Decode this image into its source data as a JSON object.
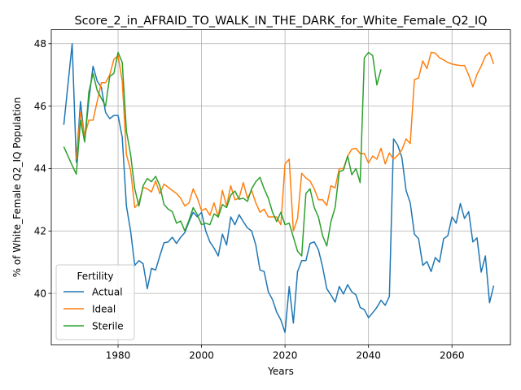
{
  "chart_data": {
    "type": "line",
    "title": "Score_2_in_AFRAID_TO_WALK_IN_THE_DARK_for_White_Female_Q2_IQ",
    "xlabel": "Years",
    "ylabel": "% of White_Female Q2_IQ Population",
    "xlim": [
      1964,
      2074
    ],
    "ylim": [
      38.35,
      48.45
    ],
    "xticks": [
      1980,
      2000,
      2020,
      2040,
      2060
    ],
    "yticks": [
      40,
      42,
      44,
      46,
      48
    ],
    "grid": true,
    "legend": {
      "title": "Fertility",
      "placement": "lower-left"
    },
    "series": [
      {
        "name": "Actual",
        "color": "#1f77b4",
        "points": [
          [
            1967,
            45.4
          ],
          [
            1968,
            46.7
          ],
          [
            1969,
            48.0
          ],
          [
            1970,
            44.2
          ],
          [
            1971,
            46.15
          ],
          [
            1972,
            44.9
          ],
          [
            1973,
            46.2
          ],
          [
            1974,
            47.28
          ],
          [
            1975,
            46.8
          ],
          [
            1976,
            46.6
          ],
          [
            1977,
            45.8
          ],
          [
            1978,
            45.6
          ],
          [
            1979,
            45.7
          ],
          [
            1980,
            45.7
          ],
          [
            1981,
            45.0
          ],
          [
            1982,
            42.8
          ],
          [
            1983,
            42.0
          ],
          [
            1984,
            40.9
          ],
          [
            1985,
            41.05
          ],
          [
            1986,
            40.95
          ],
          [
            1987,
            40.15
          ],
          [
            1988,
            40.8
          ],
          [
            1989,
            40.75
          ],
          [
            1990,
            41.2
          ],
          [
            1991,
            41.62
          ],
          [
            1992,
            41.65
          ],
          [
            1993,
            41.8
          ],
          [
            1994,
            41.6
          ],
          [
            1995,
            41.8
          ],
          [
            1996,
            41.95
          ],
          [
            1997,
            42.3
          ],
          [
            1998,
            42.6
          ],
          [
            1999,
            42.45
          ],
          [
            2000,
            42.6
          ],
          [
            2001,
            42.0
          ],
          [
            2002,
            41.65
          ],
          [
            2003,
            41.45
          ],
          [
            2004,
            41.2
          ],
          [
            2005,
            41.9
          ],
          [
            2006,
            41.55
          ],
          [
            2007,
            42.45
          ],
          [
            2008,
            42.2
          ],
          [
            2009,
            42.52
          ],
          [
            2010,
            42.3
          ],
          [
            2011,
            42.1
          ],
          [
            2012,
            42.0
          ],
          [
            2013,
            41.55
          ],
          [
            2014,
            40.75
          ],
          [
            2015,
            40.7
          ],
          [
            2016,
            40.05
          ],
          [
            2017,
            39.8
          ],
          [
            2018,
            39.4
          ],
          [
            2019,
            39.15
          ],
          [
            2020,
            38.75
          ],
          [
            2021,
            40.22
          ],
          [
            2022,
            39.05
          ],
          [
            2023,
            40.7
          ],
          [
            2024,
            41.05
          ],
          [
            2025,
            41.05
          ],
          [
            2026,
            41.6
          ],
          [
            2027,
            41.65
          ],
          [
            2028,
            41.4
          ],
          [
            2029,
            40.85
          ],
          [
            2030,
            40.15
          ],
          [
            2031,
            39.95
          ],
          [
            2032,
            39.72
          ],
          [
            2033,
            40.22
          ],
          [
            2034,
            39.98
          ],
          [
            2035,
            40.28
          ],
          [
            2036,
            40.05
          ],
          [
            2037,
            39.95
          ],
          [
            2038,
            39.55
          ],
          [
            2039,
            39.48
          ],
          [
            2040,
            39.22
          ],
          [
            2041,
            39.38
          ],
          [
            2042,
            39.55
          ],
          [
            2043,
            39.78
          ],
          [
            2044,
            39.62
          ],
          [
            2045,
            39.9
          ],
          [
            2046,
            44.95
          ],
          [
            2047,
            44.75
          ],
          [
            2048,
            44.35
          ],
          [
            2049,
            43.3
          ],
          [
            2050,
            42.9
          ],
          [
            2051,
            41.9
          ],
          [
            2052,
            41.75
          ],
          [
            2053,
            40.9
          ],
          [
            2054,
            41.02
          ],
          [
            2055,
            40.7
          ],
          [
            2056,
            41.15
          ],
          [
            2057,
            41.0
          ],
          [
            2058,
            41.75
          ],
          [
            2059,
            41.85
          ],
          [
            2060,
            42.45
          ],
          [
            2061,
            42.25
          ],
          [
            2062,
            42.88
          ],
          [
            2063,
            42.4
          ],
          [
            2064,
            42.62
          ],
          [
            2065,
            41.65
          ],
          [
            2066,
            41.78
          ],
          [
            2067,
            40.68
          ],
          [
            2068,
            41.2
          ],
          [
            2069,
            39.7
          ],
          [
            2070,
            40.25
          ]
        ]
      },
      {
        "name": "Ideal",
        "color": "#ff7f0e",
        "points": [
          [
            1970,
            44.3
          ],
          [
            1971,
            45.8
          ],
          [
            1972,
            45.05
          ],
          [
            1973,
            45.55
          ],
          [
            1974,
            45.55
          ],
          [
            1975,
            46.15
          ],
          [
            1976,
            46.75
          ],
          [
            1977,
            46.75
          ],
          [
            1978,
            47.0
          ],
          [
            1979,
            47.5
          ],
          [
            1980,
            47.62
          ],
          [
            1981,
            46.8
          ],
          [
            1982,
            44.45
          ],
          [
            1983,
            43.95
          ],
          [
            1984,
            42.75
          ],
          [
            1985,
            42.9
          ],
          [
            1986,
            43.4
          ],
          [
            1987,
            43.35
          ],
          [
            1988,
            43.25
          ],
          [
            1989,
            43.6
          ],
          [
            1990,
            43.2
          ],
          [
            1991,
            43.5
          ],
          [
            1992,
            43.4
          ],
          [
            1993,
            43.3
          ],
          [
            1994,
            43.2
          ],
          [
            1995,
            43.05
          ],
          [
            1996,
            42.8
          ],
          [
            1997,
            42.9
          ],
          [
            1998,
            43.35
          ],
          [
            1999,
            43.05
          ],
          [
            2000,
            42.65
          ],
          [
            2001,
            42.72
          ],
          [
            2002,
            42.5
          ],
          [
            2003,
            42.9
          ],
          [
            2004,
            42.45
          ],
          [
            2005,
            43.3
          ],
          [
            2006,
            42.8
          ],
          [
            2007,
            43.45
          ],
          [
            2008,
            43.0
          ],
          [
            2009,
            43.05
          ],
          [
            2010,
            43.55
          ],
          [
            2011,
            43.05
          ],
          [
            2012,
            43.3
          ],
          [
            2013,
            42.9
          ],
          [
            2014,
            42.6
          ],
          [
            2015,
            42.7
          ],
          [
            2016,
            42.45
          ],
          [
            2017,
            42.45
          ],
          [
            2018,
            42.45
          ],
          [
            2019,
            42.2
          ],
          [
            2020,
            44.15
          ],
          [
            2021,
            44.3
          ],
          [
            2022,
            42.0
          ],
          [
            2023,
            42.4
          ],
          [
            2024,
            43.85
          ],
          [
            2025,
            43.7
          ],
          [
            2026,
            43.6
          ],
          [
            2027,
            43.35
          ],
          [
            2028,
            43.0
          ],
          [
            2029,
            43.0
          ],
          [
            2030,
            42.82
          ],
          [
            2031,
            43.45
          ],
          [
            2032,
            43.38
          ],
          [
            2033,
            44.0
          ],
          [
            2034,
            44.0
          ],
          [
            2035,
            44.4
          ],
          [
            2036,
            44.62
          ],
          [
            2037,
            44.65
          ],
          [
            2038,
            44.48
          ],
          [
            2039,
            44.48
          ],
          [
            2040,
            44.18
          ],
          [
            2041,
            44.4
          ],
          [
            2042,
            44.3
          ],
          [
            2043,
            44.65
          ],
          [
            2044,
            44.15
          ],
          [
            2045,
            44.5
          ],
          [
            2046,
            44.3
          ],
          [
            2047,
            44.42
          ],
          [
            2048,
            44.6
          ],
          [
            2049,
            44.95
          ],
          [
            2050,
            44.8
          ],
          [
            2051,
            46.85
          ],
          [
            2052,
            46.9
          ],
          [
            2053,
            47.45
          ],
          [
            2054,
            47.2
          ],
          [
            2055,
            47.72
          ],
          [
            2056,
            47.7
          ],
          [
            2057,
            47.55
          ],
          [
            2058,
            47.48
          ],
          [
            2059,
            47.4
          ],
          [
            2060,
            47.35
          ],
          [
            2061,
            47.32
          ],
          [
            2062,
            47.3
          ],
          [
            2063,
            47.3
          ],
          [
            2064,
            47.0
          ],
          [
            2065,
            46.62
          ],
          [
            2066,
            47.02
          ],
          [
            2067,
            47.28
          ],
          [
            2068,
            47.6
          ],
          [
            2069,
            47.72
          ],
          [
            2070,
            47.35
          ]
        ]
      },
      {
        "name": "Sterile",
        "color": "#2ca02c",
        "points": [
          [
            1967,
            44.7
          ],
          [
            1968,
            44.4
          ],
          [
            1969,
            44.1
          ],
          [
            1970,
            43.82
          ],
          [
            1971,
            45.55
          ],
          [
            1972,
            44.85
          ],
          [
            1973,
            46.45
          ],
          [
            1974,
            47.05
          ],
          [
            1975,
            46.5
          ],
          [
            1976,
            46.25
          ],
          [
            1977,
            46.0
          ],
          [
            1978,
            46.95
          ],
          [
            1979,
            47.05
          ],
          [
            1980,
            47.72
          ],
          [
            1981,
            47.4
          ],
          [
            1982,
            45.2
          ],
          [
            1983,
            44.45
          ],
          [
            1984,
            43.35
          ],
          [
            1985,
            42.8
          ],
          [
            1986,
            43.45
          ],
          [
            1987,
            43.68
          ],
          [
            1988,
            43.58
          ],
          [
            1989,
            43.75
          ],
          [
            1990,
            43.45
          ],
          [
            1991,
            42.85
          ],
          [
            1992,
            42.7
          ],
          [
            1993,
            42.62
          ],
          [
            1994,
            42.25
          ],
          [
            1995,
            42.32
          ],
          [
            1996,
            42.0
          ],
          [
            1997,
            42.35
          ],
          [
            1998,
            42.75
          ],
          [
            1999,
            42.52
          ],
          [
            2000,
            42.2
          ],
          [
            2001,
            42.25
          ],
          [
            2002,
            42.2
          ],
          [
            2003,
            42.55
          ],
          [
            2004,
            42.45
          ],
          [
            2005,
            42.85
          ],
          [
            2006,
            42.75
          ],
          [
            2007,
            43.15
          ],
          [
            2008,
            43.28
          ],
          [
            2009,
            43.02
          ],
          [
            2010,
            43.05
          ],
          [
            2011,
            42.95
          ],
          [
            2012,
            43.35
          ],
          [
            2013,
            43.58
          ],
          [
            2014,
            43.72
          ],
          [
            2015,
            43.35
          ],
          [
            2016,
            43.05
          ],
          [
            2017,
            42.6
          ],
          [
            2018,
            42.3
          ],
          [
            2019,
            42.6
          ],
          [
            2020,
            42.2
          ],
          [
            2021,
            42.25
          ],
          [
            2022,
            41.8
          ],
          [
            2023,
            41.35
          ],
          [
            2024,
            41.2
          ],
          [
            2025,
            43.2
          ],
          [
            2026,
            43.35
          ],
          [
            2027,
            42.75
          ],
          [
            2028,
            42.45
          ],
          [
            2029,
            41.85
          ],
          [
            2030,
            41.52
          ],
          [
            2031,
            42.3
          ],
          [
            2032,
            42.75
          ],
          [
            2033,
            43.9
          ],
          [
            2034,
            43.95
          ],
          [
            2035,
            44.4
          ],
          [
            2036,
            43.8
          ],
          [
            2037,
            44.0
          ],
          [
            2038,
            43.55
          ],
          [
            2039,
            47.55
          ],
          [
            2040,
            47.72
          ],
          [
            2041,
            47.62
          ],
          [
            2042,
            46.68
          ],
          [
            2043,
            47.18
          ]
        ]
      }
    ]
  }
}
